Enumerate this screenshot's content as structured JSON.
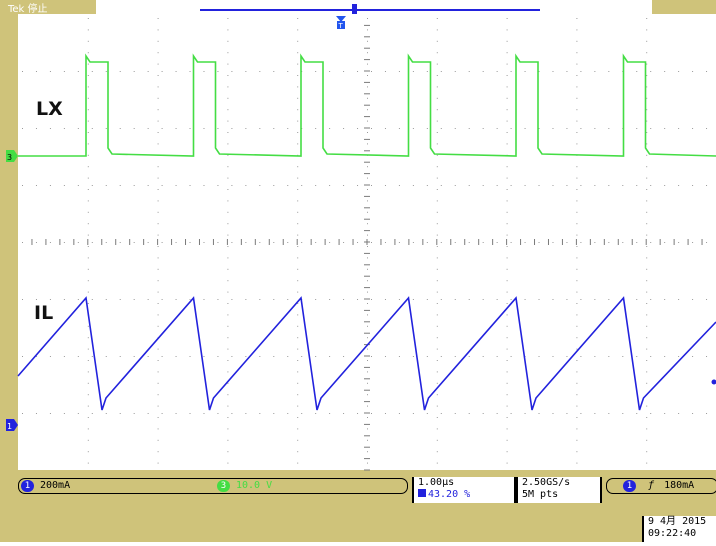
{
  "screen": {
    "brand_label": "Tek 停止",
    "colors": {
      "frame": "#cfc37a",
      "ch1": "#2222dd",
      "ch3": "#44dd44",
      "grid": "#9a9a9a"
    }
  },
  "traces": {
    "lx": {
      "label": "LX",
      "color": "#44dd44"
    },
    "il": {
      "label": "IL",
      "color": "#2222dd"
    }
  },
  "status": {
    "ch1": {
      "badge": "1",
      "scale": "200mA"
    },
    "ch3": {
      "badge": "3",
      "scale": "10.0 V"
    },
    "timebase": {
      "per_div": "1.00µs",
      "position": "43.20 %"
    },
    "sample": {
      "rate": "2.50GS/s",
      "length": "5M pts"
    },
    "trigger": {
      "badge": "1",
      "slope_icon": "rising-edge-icon",
      "level": "180mA"
    }
  },
  "datetime": {
    "date": "9 4月 2015",
    "time": "09:22:40"
  }
}
